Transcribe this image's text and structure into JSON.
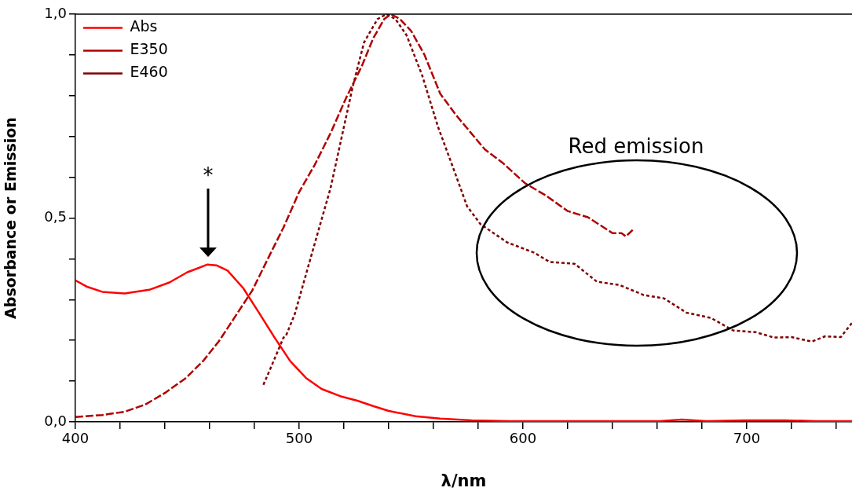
{
  "chart_data": {
    "type": "line",
    "xlabel": "λ/nm",
    "ylabel": "Absorbance or Emission",
    "xlim": [
      400,
      747
    ],
    "ylim": [
      0,
      1
    ],
    "xticks": [
      400,
      {
        "value": 420,
        "label": null
      },
      {
        "value": 440,
        "label": null
      },
      {
        "value": 460,
        "label": null
      },
      {
        "value": 480,
        "label": null
      },
      500,
      {
        "value": 520,
        "label": null
      },
      {
        "value": 540,
        "label": null
      },
      {
        "value": 560,
        "label": null
      },
      {
        "value": 580,
        "label": null
      },
      600,
      {
        "value": 620,
        "label": null
      },
      {
        "value": 640,
        "label": null
      },
      {
        "value": 660,
        "label": null
      },
      {
        "value": 680,
        "label": null
      },
      700,
      {
        "value": 720,
        "label": null
      },
      {
        "value": 740,
        "label": null
      }
    ],
    "yticks": [
      {
        "value": 0,
        "label": "0,0"
      },
      {
        "value": 0.1,
        "label": null
      },
      {
        "value": 0.2,
        "label": null
      },
      {
        "value": 0.3,
        "label": null
      },
      {
        "value": 0.4,
        "label": null
      },
      {
        "value": 0.5,
        "label": "0,5"
      },
      {
        "value": 0.6,
        "label": null
      },
      {
        "value": 0.7,
        "label": null
      },
      {
        "value": 0.8,
        "label": null
      },
      {
        "value": 0.9,
        "label": null
      },
      {
        "value": 1,
        "label": "1,0"
      }
    ],
    "legend": "top left",
    "marker": "none",
    "series": [
      {
        "name": "Abs",
        "color": "#ff0000",
        "line_style": "solid",
        "x": [
          400,
          405,
          412,
          422,
          433,
          442,
          450,
          459,
          463,
          468,
          475,
          482,
          489,
          496,
          503,
          510,
          519,
          526,
          533,
          540,
          552,
          563,
          577,
          594,
          629,
          661,
          671,
          682,
          699,
          717,
          731,
          747
        ],
        "values": [
          0.347,
          0.332,
          0.319,
          0.315,
          0.324,
          0.342,
          0.367,
          0.386,
          0.384,
          0.371,
          0.328,
          0.268,
          0.207,
          0.149,
          0.108,
          0.081,
          0.062,
          0.052,
          0.039,
          0.027,
          0.014,
          0.008,
          0.004,
          0.002,
          0.002,
          0.002,
          0.006,
          0.002,
          0.004,
          0.004,
          0.002,
          0.002
        ]
      },
      {
        "name": "E350",
        "color": "#b00000",
        "line_style": "dashed",
        "x": [
          400,
          412,
          422,
          431,
          440,
          449,
          457,
          464,
          471,
          479,
          486,
          493,
          500,
          507,
          514,
          521,
          528,
          533,
          538,
          541,
          545,
          550,
          556,
          563,
          570,
          583,
          591,
          601,
          610,
          620,
          629,
          640,
          644,
          646,
          649
        ],
        "values": [
          0.012,
          0.017,
          0.025,
          0.042,
          0.071,
          0.106,
          0.149,
          0.197,
          0.255,
          0.322,
          0.4,
          0.477,
          0.564,
          0.631,
          0.708,
          0.795,
          0.873,
          0.94,
          0.988,
          1.0,
          0.988,
          0.959,
          0.9,
          0.805,
          0.753,
          0.668,
          0.635,
          0.585,
          0.556,
          0.517,
          0.502,
          0.463,
          0.463,
          0.455,
          0.471
        ]
      },
      {
        "name": "E460",
        "color": "#800000",
        "line_style": "dotted",
        "x": [
          484,
          487,
          490,
          493,
          494,
          498,
          503,
          508,
          514,
          519,
          524,
          529,
          535,
          539,
          543,
          548,
          555,
          562,
          569,
          575,
          581,
          593,
          605,
          612,
          623,
          633,
          643,
          654,
          663,
          673,
          684,
          694,
          704,
          712,
          720,
          729,
          735,
          742,
          747
        ],
        "values": [
          0.091,
          0.129,
          0.168,
          0.207,
          0.21,
          0.264,
          0.361,
          0.458,
          0.573,
          0.699,
          0.824,
          0.931,
          0.988,
          1.0,
          0.988,
          0.948,
          0.849,
          0.724,
          0.62,
          0.529,
          0.485,
          0.44,
          0.415,
          0.392,
          0.388,
          0.344,
          0.336,
          0.311,
          0.303,
          0.268,
          0.255,
          0.224,
          0.22,
          0.207,
          0.208,
          0.197,
          0.21,
          0.208,
          0.243
        ]
      }
    ],
    "annotations": [
      "*",
      "Red emission"
    ]
  }
}
